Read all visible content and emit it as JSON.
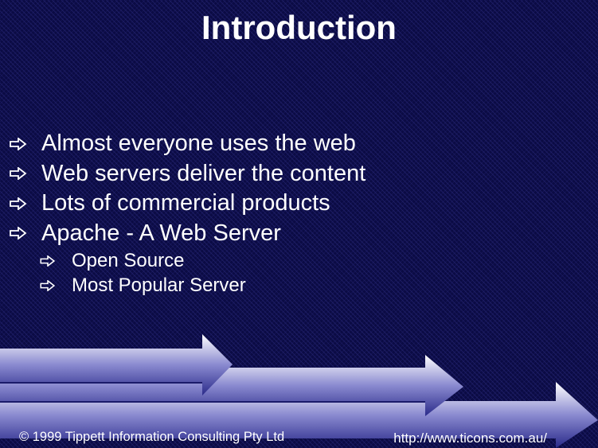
{
  "slide": {
    "title": "Introduction",
    "bullets": [
      {
        "text": "Almost everyone uses the web"
      },
      {
        "text": "Web servers deliver the content"
      },
      {
        "text": "Lots of commercial products"
      },
      {
        "text": "Apache - A Web Server"
      }
    ],
    "sub_bullets": [
      {
        "text": "Open Source"
      },
      {
        "text": "Most Popular Server"
      }
    ],
    "bullet_icon": "hollow-right-arrow-icon",
    "footer": {
      "copyright": "© 1999  Tippett Information Consulting Pty Ltd",
      "url": "http://www.ticons.com.au/"
    },
    "colors": {
      "background": "#0b0b44",
      "text": "#ffffff",
      "arrow_light": "#ffffff",
      "arrow_dark": "#2a2a8a"
    }
  }
}
